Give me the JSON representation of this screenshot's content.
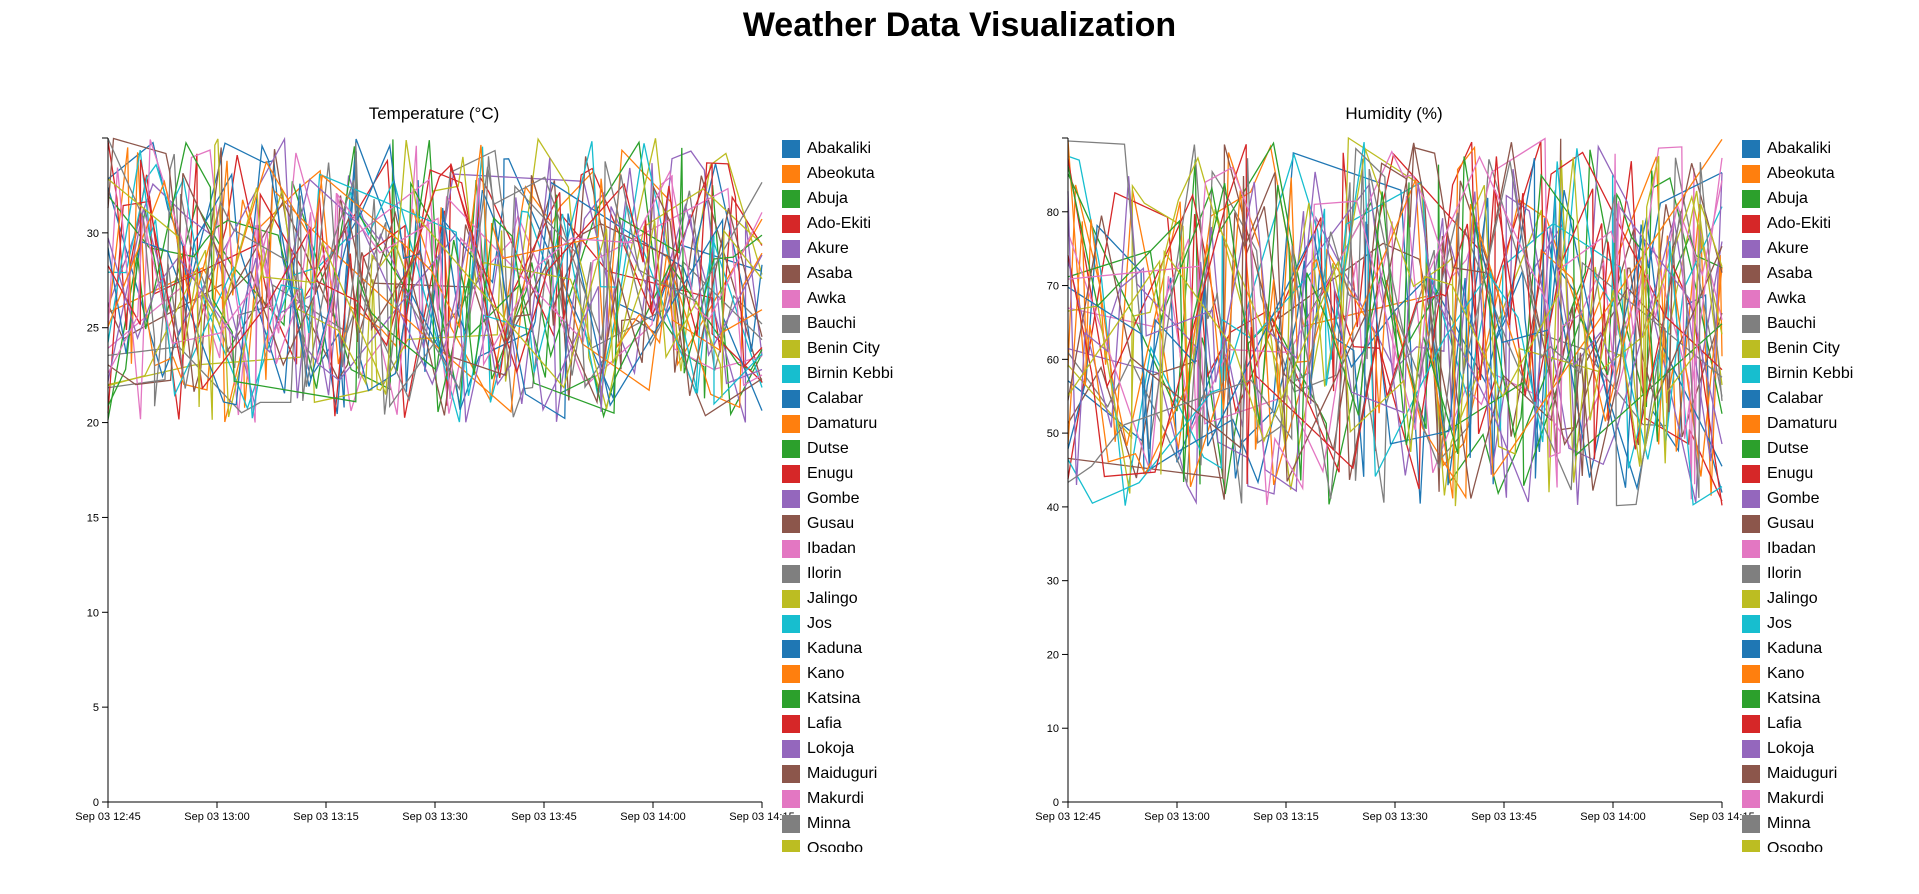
{
  "page": {
    "title": "Weather Data Visualization"
  },
  "palette": [
    "#1f77b4",
    "#ff7f0e",
    "#2ca02c",
    "#d62728",
    "#9467bd",
    "#8c564b",
    "#e377c2",
    "#7f7f7f",
    "#bcbd22",
    "#17becf"
  ],
  "cities": [
    "Abakaliki",
    "Abeokuta",
    "Abuja",
    "Ado-Ekiti",
    "Akure",
    "Asaba",
    "Awka",
    "Bauchi",
    "Benin City",
    "Birnin Kebbi",
    "Calabar",
    "Damaturu",
    "Dutse",
    "Enugu",
    "Gombe",
    "Gusau",
    "Ibadan",
    "Ilorin",
    "Jalingo",
    "Jos",
    "Kaduna",
    "Kano",
    "Katsina",
    "Lafia",
    "Lokoja",
    "Maiduguri",
    "Makurdi",
    "Minna",
    "Osogbo"
  ],
  "chart_data": [
    {
      "type": "line",
      "title": "Temperature (°C)",
      "xlabel": "",
      "ylabel": "",
      "x_ticks": [
        "Sep 03 12:45",
        "Sep 03 13:00",
        "Sep 03 13:15",
        "Sep 03 13:30",
        "Sep 03 13:45",
        "Sep 03 14:00",
        "Sep 03 14:15"
      ],
      "y_ticks": [
        0,
        5,
        10,
        15,
        20,
        25,
        30
      ],
      "ylim": [
        0,
        35
      ],
      "x_range_minutes": [
        0,
        95
      ],
      "data_range": [
        20,
        35
      ],
      "grid": false,
      "legend": "right",
      "series_count": 29,
      "points_per_series": 28,
      "seed": 7
    },
    {
      "type": "line",
      "title": "Humidity (%)",
      "xlabel": "",
      "ylabel": "",
      "x_ticks": [
        "Sep 03 12:45",
        "Sep 03 13:00",
        "Sep 03 13:15",
        "Sep 03 13:30",
        "Sep 03 13:45",
        "Sep 03 14:00",
        "Sep 03 14:15"
      ],
      "y_ticks": [
        0,
        10,
        20,
        30,
        40,
        50,
        60,
        70,
        80
      ],
      "ylim": [
        0,
        90
      ],
      "x_range_minutes": [
        0,
        95
      ],
      "data_range": [
        40,
        90
      ],
      "grid": false,
      "legend": "right",
      "series_count": 29,
      "points_per_series": 28,
      "seed": 13
    }
  ]
}
